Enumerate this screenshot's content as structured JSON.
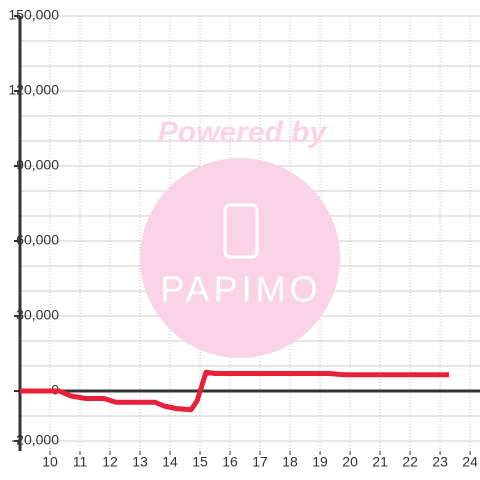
{
  "chart_data": {
    "type": "line",
    "watermark": [
      "Powered by",
      "PAPIMO"
    ],
    "x": [
      9,
      10.3,
      10.7,
      11.2,
      11.8,
      12.2,
      13.5,
      13.8,
      14.2,
      14.7,
      14.9,
      15.2,
      15.5,
      19.3,
      19.8,
      23.3
    ],
    "series": [
      {
        "color": "#e8213a",
        "values": [
          0,
          0,
          -2000,
          -3000,
          -3000,
          -4500,
          -4500,
          -6000,
          -7000,
          -7500,
          -4000,
          7500,
          7000,
          7000,
          6500,
          6500
        ]
      }
    ],
    "xlim": [
      9,
      24.33
    ],
    "xticks": [
      10,
      11,
      12,
      13,
      14,
      15,
      16,
      17,
      18,
      19,
      20,
      21,
      22,
      23,
      24
    ],
    "ylim": [
      -24000,
      150000
    ],
    "yticks": [
      {
        "value": -20000,
        "label": "-20,000"
      },
      0,
      {
        "value": 30000,
        "label": "30,000"
      },
      {
        "value": 60000,
        "label": "60,000"
      },
      {
        "value": 90000,
        "label": "90,000"
      },
      {
        "value": 120000,
        "label": "120,000"
      },
      {
        "value": 150000,
        "label": "150,000"
      }
    ],
    "yminorticks": [
      -10000,
      10000,
      20000,
      40000,
      50000,
      70000,
      80000,
      100000,
      110000,
      130000,
      140000
    ],
    "grid": true
  }
}
